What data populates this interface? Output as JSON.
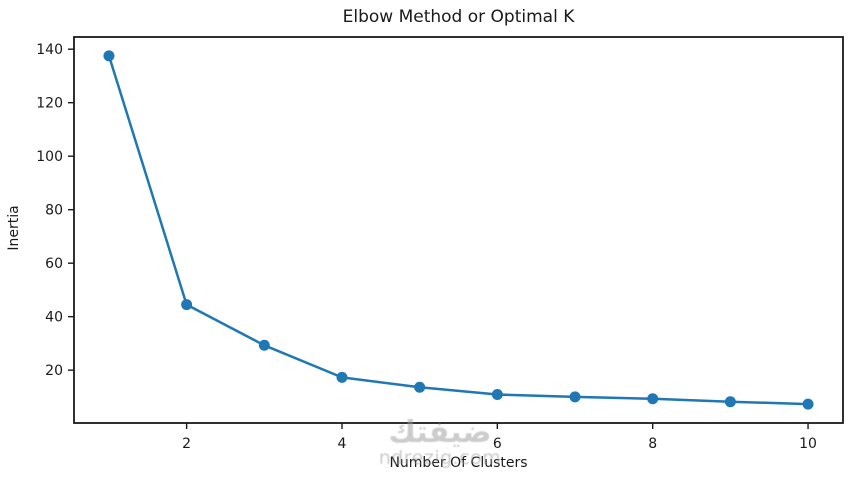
{
  "page": {
    "background": "#ffffff"
  },
  "chart_data": {
    "type": "line",
    "title": "Elbow Method or Optimal K",
    "xlabel": "Number Of Clusters",
    "ylabel": "Inertia",
    "x": [
      1,
      2,
      3,
      4,
      5,
      6,
      7,
      8,
      9,
      10
    ],
    "series": [
      {
        "name": "inertia",
        "values": [
          137.5,
          44.5,
          29.3,
          17.3,
          13.6,
          10.9,
          10.0,
          9.3,
          8.2,
          7.3
        ]
      }
    ],
    "xticks": [
      2,
      4,
      6,
      8,
      10
    ],
    "yticks": [
      20,
      40,
      60,
      80,
      100,
      120,
      140
    ],
    "xlim": [
      0.55,
      10.45
    ],
    "ylim": [
      0.24,
      144.56
    ],
    "grid": false,
    "legend": "none",
    "line_color": "#1f77b4",
    "marker": "circle",
    "axis_color": "#1a1a1a",
    "text_color": "#1a1a1a"
  },
  "watermark": {
    "line1": "ضيفتك",
    "line2": "ndrezig.com",
    "color": "#9a9a9a"
  }
}
